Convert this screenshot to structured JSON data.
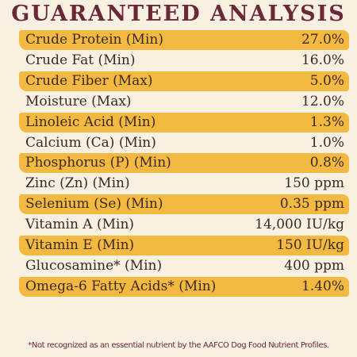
{
  "header": {
    "title": "GUARANTEED ANALYSIS"
  },
  "table": {
    "rows": [
      [
        "Crude Protein (Min)",
        "27.0%"
      ],
      [
        "Crude Fat (Min)",
        "16.0%"
      ],
      [
        "Crude Fiber (Max)",
        "5.0%"
      ],
      [
        "Moisture (Max)",
        "12.0%"
      ],
      [
        "Linoleic Acid (Min)",
        "1.3%"
      ],
      [
        "Calcium (Ca) (Min)",
        "1.0%"
      ],
      [
        "Phosphorus (P) (Min)",
        "0.8%"
      ],
      [
        "Zinc (Zn) (Min)",
        "150 ppm"
      ],
      [
        "Selenium (Se) (Min)",
        "0.35 ppm"
      ],
      [
        "Vitamin A (Min)",
        "14,000 IU/kg"
      ],
      [
        "Vitamin E (Min)",
        "150 IU/kg"
      ],
      [
        "Glucosamine* (Min)",
        "400 ppm"
      ],
      [
        "Omega-6 Fatty Acids* (Min)",
        "1.40%"
      ]
    ]
  },
  "footnote": "*Not recognized as an essential nutrient by the AAFCO Dog Food Nutrient Profiles."
}
